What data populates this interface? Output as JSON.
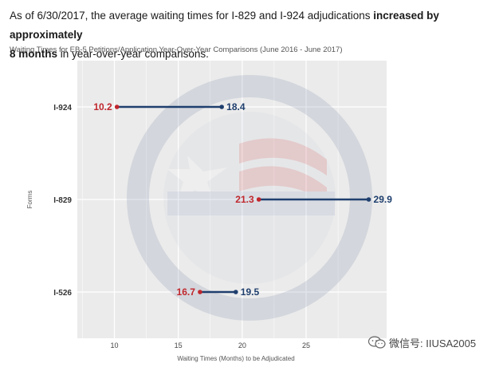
{
  "headline": {
    "part1": "As of 6/30/2017, the average waiting times for I-829 and I-924 adjudications ",
    "bold1": "increased by approximately",
    "bold2": "8 months",
    "part2": " in year-over-year comparisons."
  },
  "subtitle": "Waiting Times for EB-5 Petitions/Application Year-Over-Year Comparisons (June 2016 - June 2017)",
  "watermark": {
    "text": "微信号: IIUSA2005",
    "icon": "wechat-icon"
  },
  "colors": {
    "before": "#c0272d",
    "after": "#1f3f6e",
    "panel": "#ebebeb",
    "grid": "#ffffff"
  },
  "chart_data": {
    "type": "dumbbell",
    "categories": [
      "I-924",
      "I-829",
      "I-526"
    ],
    "series": [
      {
        "values": [
          10.2,
          21.3,
          16.7
        ]
      },
      {
        "values": [
          18.4,
          29.9,
          19.5
        ]
      }
    ],
    "xlabel": "Waiting Times (Months) to be Adjudicated",
    "ylabel": "Forms",
    "xlim": [
      7.1,
      31.3
    ],
    "xticks": [
      10,
      15,
      20,
      25
    ],
    "tick_labels": [
      "10",
      "15",
      "20",
      "25"
    ],
    "grid": true
  }
}
